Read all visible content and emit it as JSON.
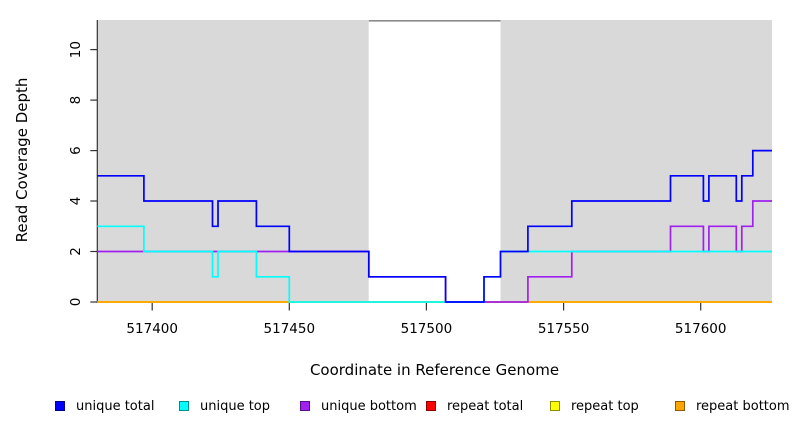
{
  "chart_data": {
    "type": "line",
    "step_mode": "post",
    "title": "",
    "xlabel": "Coordinate in Reference Genome",
    "ylabel": "Read Coverage Depth",
    "xlim": [
      517380,
      517626
    ],
    "ylim": [
      0,
      11.2
    ],
    "grid": false,
    "x_tick_values": [
      517400,
      517450,
      517500,
      517550,
      517600
    ],
    "x_tick_labels": [
      "517400",
      "517450",
      "517500",
      "517550",
      "517600"
    ],
    "y_tick_values": [
      0,
      2,
      4,
      6,
      8,
      10
    ],
    "y_tick_labels": [
      "0",
      "2",
      "4",
      "6",
      "8",
      "10"
    ],
    "axis_color": "#333333",
    "plot_regions": [
      {
        "name": "repeat-region-left",
        "x0": 517380,
        "x1": 517479,
        "fill": "#d9d9d9"
      },
      {
        "name": "unique-gap-region",
        "x0": 517479,
        "x1": 517527,
        "fill": "#ffffff",
        "top_border": "#8c8c8c"
      },
      {
        "name": "repeat-region-right",
        "x0": 517527,
        "x1": 517626,
        "fill": "#d9d9d9"
      }
    ],
    "series": [
      {
        "name": "repeat total",
        "color": "#ff0000",
        "points": [
          [
            517380,
            0
          ],
          [
            517626,
            0
          ]
        ]
      },
      {
        "name": "repeat top",
        "color": "#ffff00",
        "points": [
          [
            517380,
            0
          ],
          [
            517626,
            0
          ]
        ]
      },
      {
        "name": "repeat bottom",
        "color": "#ffa500",
        "points": [
          [
            517380,
            0
          ],
          [
            517626,
            0
          ]
        ]
      },
      {
        "name": "unique bottom",
        "color": "#a020f0",
        "points": [
          [
            517380,
            2
          ],
          [
            517479,
            1
          ],
          [
            517507,
            0
          ],
          [
            517537,
            1
          ],
          [
            517553,
            2
          ],
          [
            517589,
            3
          ],
          [
            517601,
            2
          ],
          [
            517603,
            3
          ],
          [
            517613,
            2
          ],
          [
            517615,
            3
          ],
          [
            517619,
            4
          ],
          [
            517626,
            4
          ]
        ]
      },
      {
        "name": "unique top",
        "color": "#00ffff",
        "points": [
          [
            517380,
            3
          ],
          [
            517397,
            2
          ],
          [
            517422,
            1
          ],
          [
            517424,
            2
          ],
          [
            517438,
            1
          ],
          [
            517450,
            0
          ],
          [
            517521,
            1
          ],
          [
            517527,
            2
          ],
          [
            517626,
            2
          ]
        ]
      },
      {
        "name": "unique total",
        "color": "#0000ff",
        "points": [
          [
            517380,
            5
          ],
          [
            517397,
            4
          ],
          [
            517422,
            3
          ],
          [
            517424,
            4
          ],
          [
            517438,
            3
          ],
          [
            517450,
            2
          ],
          [
            517479,
            1
          ],
          [
            517507,
            0
          ],
          [
            517521,
            1
          ],
          [
            517527,
            2
          ],
          [
            517537,
            3
          ],
          [
            517553,
            4
          ],
          [
            517589,
            5
          ],
          [
            517601,
            4
          ],
          [
            517603,
            5
          ],
          [
            517613,
            4
          ],
          [
            517615,
            5
          ],
          [
            517619,
            6
          ],
          [
            517626,
            6
          ]
        ]
      }
    ],
    "legend": {
      "position": "bottom",
      "items": [
        {
          "label": "unique total",
          "color": "#0000ff"
        },
        {
          "label": "unique top",
          "color": "#00ffff"
        },
        {
          "label": "unique bottom",
          "color": "#a020f0"
        },
        {
          "label": "repeat total",
          "color": "#ff0000"
        },
        {
          "label": "repeat top",
          "color": "#ffff00"
        },
        {
          "label": "repeat bottom",
          "color": "#ffa500"
        }
      ]
    }
  }
}
